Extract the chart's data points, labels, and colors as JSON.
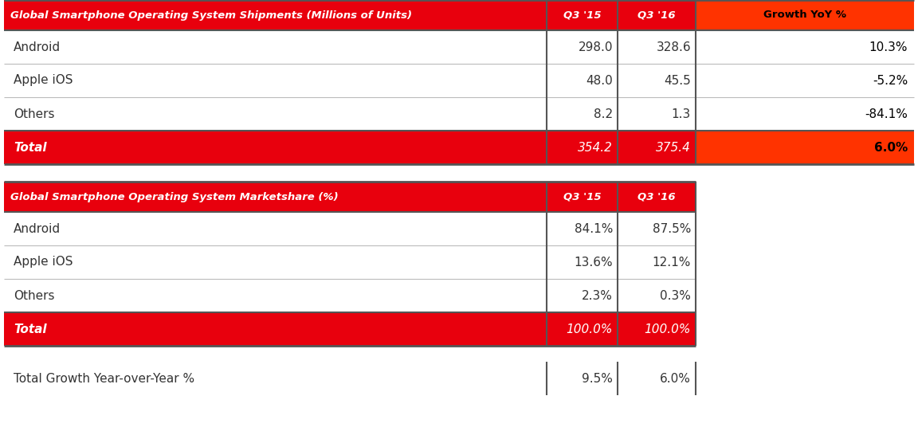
{
  "table1_title": "Global Smartphone Operating System Shipments (Millions of Units)",
  "table1_col1": "Q3 '15",
  "table1_col2": "Q3 '16",
  "table1_col3": "Growth YoY %",
  "table1_rows": [
    {
      "label": "Android",
      "q3_15": "298.0",
      "q3_16": "328.6",
      "growth": "10.3%"
    },
    {
      "label": "Apple iOS",
      "q3_15": "48.0",
      "q3_16": "45.5",
      "growth": "-5.2%"
    },
    {
      "label": "Others",
      "q3_15": "8.2",
      "q3_16": "1.3",
      "growth": "-84.1%"
    }
  ],
  "table1_total": {
    "label": "Total",
    "q3_15": "354.2",
    "q3_16": "375.4",
    "growth": "6.0%"
  },
  "table2_title": "Global Smartphone Operating System Marketshare (%)",
  "table2_col1": "Q3 '15",
  "table2_col2": "Q3 '16",
  "table2_rows": [
    {
      "label": "Android",
      "q3_15": "84.1%",
      "q3_16": "87.5%"
    },
    {
      "label": "Apple iOS",
      "q3_15": "13.6%",
      "q3_16": "12.1%"
    },
    {
      "label": "Others",
      "q3_15": "2.3%",
      "q3_16": "0.3%"
    }
  ],
  "table2_total": {
    "label": "Total",
    "q3_15": "100.0%",
    "q3_16": "100.0%"
  },
  "bottom_row": {
    "label": "Total Growth Year-over-Year %",
    "q3_15": "9.5%",
    "q3_16": "6.0%"
  },
  "red_main_bg": "#E8000D",
  "red_bright_bg": "#FF3300",
  "white_bg": "#FFFFFF",
  "white_text": "#FFFFFF",
  "black_text": "#000000",
  "dark_text": "#333333",
  "gray_text": "#555555",
  "border_color": "#555555",
  "row_sep_color": "#BBBBBB",
  "header_fontsize": 9.5,
  "cell_fontsize": 11
}
